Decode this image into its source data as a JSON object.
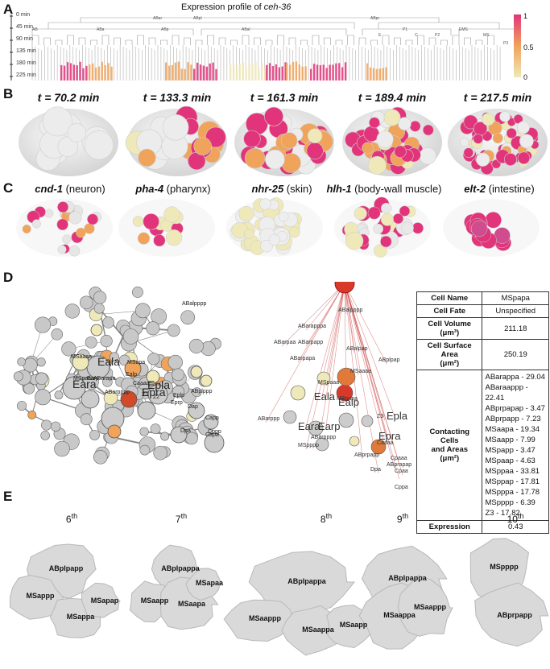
{
  "panel_a": {
    "label": "A",
    "title_prefix": "Expression profile of ",
    "title_gene": "ceh-36",
    "time_ticks": [
      "0 min",
      "45 min",
      "90 min",
      "135 min",
      "180 min",
      "225 min"
    ],
    "lineage_labels": [
      "AB",
      "ABa",
      "ABp",
      "ABal",
      "ABar",
      "ABpl",
      "ABpr",
      "P1",
      "EMS",
      "P2",
      "MS",
      "E",
      "C",
      "P3"
    ],
    "colorbar_ticks": [
      "1",
      "0.5",
      "0"
    ]
  },
  "panel_b": {
    "label": "B",
    "times": [
      "t = 70.2 min",
      "t = 133.3 min",
      "t = 161.3 min",
      "t = 189.4 min",
      "t = 217.5 min"
    ]
  },
  "panel_c": {
    "label": "C",
    "genes": [
      {
        "gene": "cnd-1",
        "desc": " (neuron)"
      },
      {
        "gene": "pha-4",
        "desc": " (pharynx)"
      },
      {
        "gene": "nhr-25",
        "desc": " (skin)"
      },
      {
        "gene": "hlh-1",
        "desc": " (body-wall muscle)"
      },
      {
        "gene": "elt-2",
        "desc": " (intestine)"
      }
    ]
  },
  "panel_d": {
    "label": "D",
    "network_labels": [
      "ABalpppp",
      "MSaaaa",
      "ABarapa",
      "MSpaaa",
      "Eala",
      "Eara",
      "Earp",
      "MSapa",
      "Ealp",
      "Epla",
      "ABarpppp",
      "Epra",
      "Caaaa",
      "Z2",
      "Z3",
      "Eplp",
      "Dap",
      "Capp",
      "Capa",
      "Eprp",
      "Cppp",
      "ABplppp",
      "Dpa"
    ],
    "star_labels": [
      "MSpapa",
      "ABalpppp",
      "ABarapppa",
      "ABarpapp",
      "ABarpapa",
      "ABalpap",
      "ABplpap",
      "ABarppp",
      "ABarpaa",
      "MSaaaa",
      "MSpaaa",
      "Eala",
      "Ealp",
      "Eara",
      "Earp",
      "Epla",
      "Epra",
      "Z3",
      "Caaaa",
      "ABarpppp",
      "MSpppp",
      "ABprpapp",
      "Cpaaa",
      "ABprapap",
      "Dpa",
      "Cppa",
      "Cpaa"
    ],
    "table": {
      "cell_name_label": "Cell Name",
      "cell_name": "MSpapa",
      "cell_fate_label": "Cell Fate",
      "cell_fate": "Unspecified",
      "cell_volume_label": "Cell Volume",
      "cell_volume_unit": "(μm³)",
      "cell_volume": "211.18",
      "surface_label": "Cell Surface Area",
      "surface_unit": "(μm²)",
      "surface": "250.19",
      "contact_label_1": "Contacting",
      "contact_label_2": "Cells",
      "contact_label_3": "and Areas",
      "contact_unit": "(μm²)",
      "contacts": [
        "ABarappa - 29.04",
        "ABaraappp - 22.41",
        "ABprpapap - 3.47",
        "ABprpapp - 7.23",
        "MSaapa - 19.34",
        "MSaapp - 7.99",
        "MSpapp - 3.47",
        "MSpaap - 4.63",
        "MSppaa - 33.81",
        "MSppap - 17.81",
        "MSpppa - 17.78",
        "MSpppp - 6.39",
        "Z3 - 17.82"
      ],
      "expression_label": "Expression",
      "expression": "0.43"
    }
  },
  "panel_e": {
    "label": "E",
    "groups": [
      {
        "ordinal": "6",
        "suffix": "th",
        "cells": [
          "ABplpapp",
          "MSappp",
          "MSappa",
          "MSapap"
        ]
      },
      {
        "ordinal": "7",
        "suffix": "th",
        "cells": [
          "ABplpappa",
          "MSaapp",
          "MSaapa",
          "MSapaa"
        ]
      },
      {
        "ordinal": "8",
        "suffix": "th",
        "cells": [
          "ABplpappa",
          "MSaappp",
          "MSaappa",
          "MSaapp"
        ]
      },
      {
        "ordinal": "9",
        "suffix": "th",
        "cells": [
          "ABplpappa",
          "MSaappa",
          "MSaappp"
        ]
      },
      {
        "ordinal": "10",
        "suffix": "th",
        "cells": [
          "MSpppp",
          "ABprpapp"
        ]
      }
    ]
  },
  "colors": {
    "high": "#e2347a",
    "mid": "#f0a35a",
    "low": "#efe8b8",
    "none": "#d6d6d6"
  }
}
